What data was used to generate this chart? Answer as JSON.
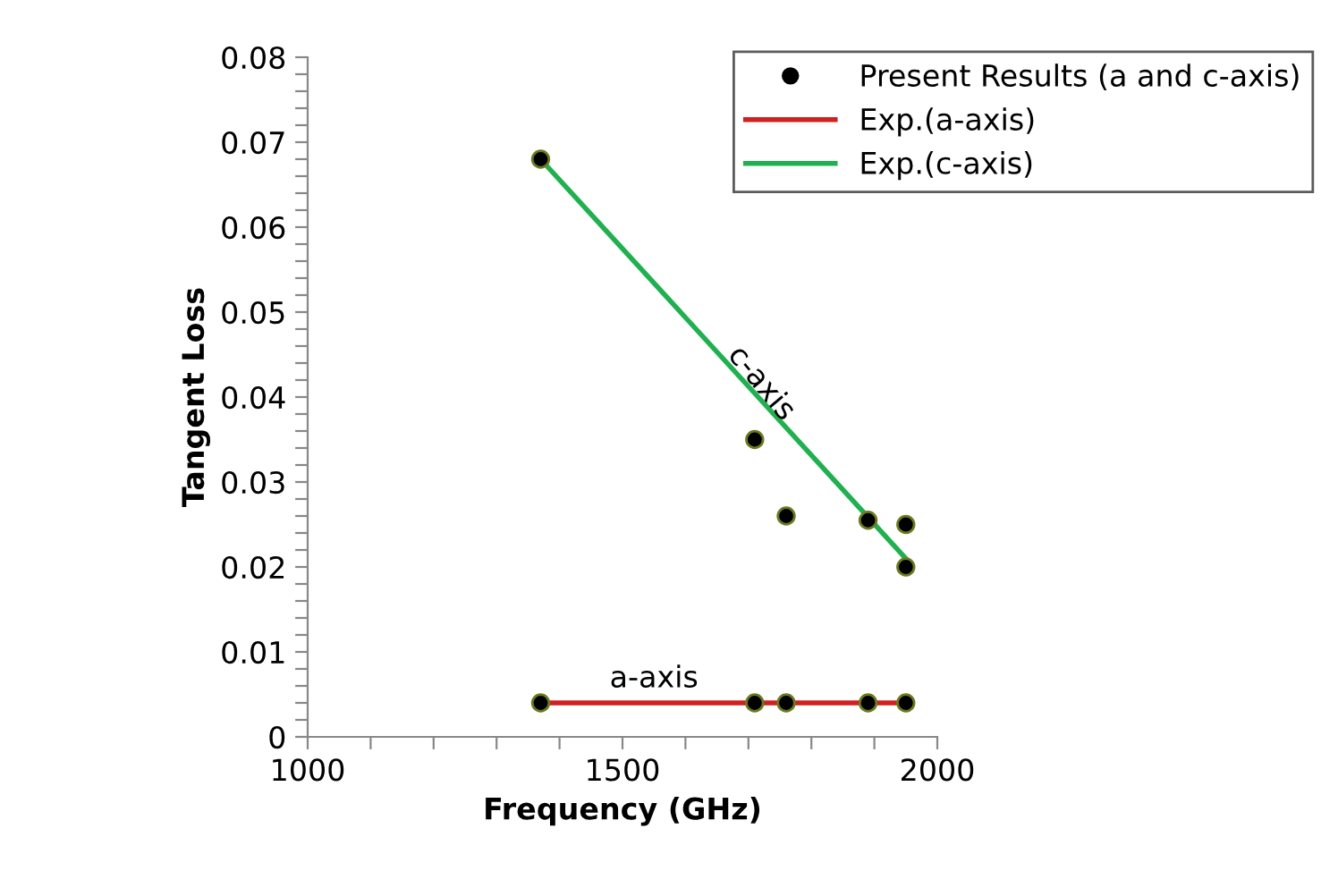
{
  "chart_data": {
    "type": "scatter",
    "xlabel": "Frequency (GHz)",
    "ylabel": "Tangent Loss",
    "xlim": [
      1000,
      2000
    ],
    "ylim": [
      0,
      0.08
    ],
    "xticks": [
      1000,
      {
        "value": 1100,
        "label": null
      },
      {
        "value": 1200,
        "label": null
      },
      {
        "value": 1300,
        "label": null
      },
      {
        "value": 1400,
        "label": null
      },
      1500,
      {
        "value": 1600,
        "label": null
      },
      {
        "value": 1700,
        "label": null
      },
      {
        "value": 1800,
        "label": null
      },
      {
        "value": 1900,
        "label": null
      },
      2000
    ],
    "yticks": [
      0,
      {
        "value": 0.002,
        "label": null
      },
      {
        "value": 0.004,
        "label": null
      },
      {
        "value": 0.006,
        "label": null
      },
      {
        "value": 0.008,
        "label": null
      },
      0.01,
      {
        "value": 0.012,
        "label": null
      },
      {
        "value": 0.014,
        "label": null
      },
      {
        "value": 0.016,
        "label": null
      },
      {
        "value": 0.018,
        "label": null
      },
      0.02,
      {
        "value": 0.022,
        "label": null
      },
      {
        "value": 0.024,
        "label": null
      },
      {
        "value": 0.026,
        "label": null
      },
      {
        "value": 0.028,
        "label": null
      },
      0.03,
      {
        "value": 0.032,
        "label": null
      },
      {
        "value": 0.034,
        "label": null
      },
      {
        "value": 0.036,
        "label": null
      },
      {
        "value": 0.038,
        "label": null
      },
      0.04,
      {
        "value": 0.042,
        "label": null
      },
      {
        "value": 0.044,
        "label": null
      },
      {
        "value": 0.046,
        "label": null
      },
      {
        "value": 0.048,
        "label": null
      },
      0.05,
      {
        "value": 0.052,
        "label": null
      },
      {
        "value": 0.054,
        "label": null
      },
      {
        "value": 0.056,
        "label": null
      },
      {
        "value": 0.058,
        "label": null
      },
      0.06,
      {
        "value": 0.062,
        "label": null
      },
      {
        "value": 0.064,
        "label": null
      },
      {
        "value": 0.066,
        "label": null
      },
      {
        "value": 0.068,
        "label": null
      },
      0.07,
      {
        "value": 0.072,
        "label": null
      },
      {
        "value": 0.074,
        "label": null
      },
      {
        "value": 0.076,
        "label": null
      },
      {
        "value": 0.078,
        "label": null
      },
      0.08
    ],
    "grid": false,
    "legend": "top right",
    "series": [
      {
        "name": "Present Results (a and c-axis)",
        "marker": "circle",
        "color": "#000000",
        "x": [
          1370,
          1710,
          1760,
          1890,
          1950,
          1950,
          1370,
          1710,
          1760,
          1890,
          1950
        ],
        "values": [
          0.068,
          0.035,
          0.026,
          0.0255,
          0.025,
          0.02,
          0.004,
          0.004,
          0.004,
          0.004,
          0.004
        ]
      },
      {
        "name": "Exp.(a-axis)",
        "type": "line",
        "line_style": "solid",
        "color": "#d02020",
        "x": [
          1370,
          1950
        ],
        "values": [
          0.004,
          0.004
        ]
      },
      {
        "name": "Exp.(c-axis)",
        "type": "line",
        "line_style": "solid",
        "color": "#20b050",
        "x": [
          1370,
          1950
        ],
        "values": [
          0.068,
          0.021
        ]
      }
    ],
    "annotations": [
      "c-axis",
      "a-axis"
    ]
  }
}
